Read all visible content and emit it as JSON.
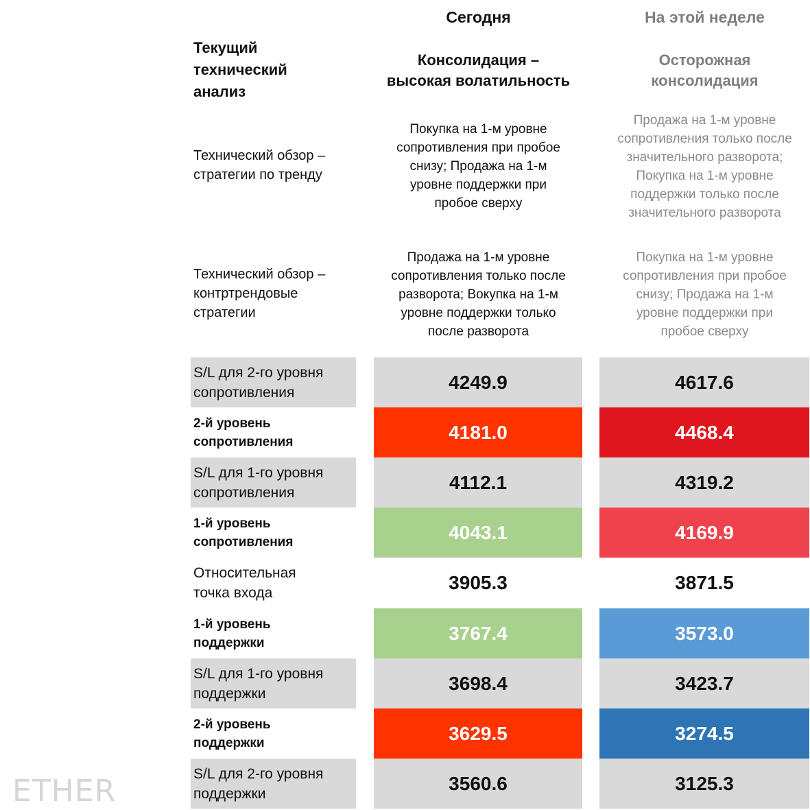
{
  "header": {
    "today": "Сегодня",
    "this_week": "На этой неделе",
    "left_title": "Текущий\nтехнический\nанализ",
    "today_outlook": "Консолидация –\nвысокая волатильность",
    "week_outlook": "Осторожная\nконсолидация"
  },
  "trend": {
    "label": "Технический обзор –\nстратегии по тренду",
    "today": "Покупка на 1-м уровне\nсопротивления при пробое\nснизу; Продажа на 1-м\nуровне поддержки при\nпробое сверху",
    "week": "Продажа на 1-м уровне\nсопротивления только после\nзначительного разворота;\nПокупка на 1-м уровне\nподдержки только после\nзначительного разворота"
  },
  "counter": {
    "label": "Технический обзор –\nконтртрендовые\nстратегии",
    "today": "Продажа на 1-м уровне\nсопротивления только после\nразворота; Вокупка на 1-м\nуровне поддержки только\nпосле разворота",
    "week": "Покупка на 1-м уровне\nсопротивления при пробое\nснизу; Продажа на 1-м\nуровне поддержки при\nпробое сверху"
  },
  "levels": [
    {
      "label": "S/L для 2-го уровня\nсопротивления",
      "today": "4249.9",
      "week": "4617.6",
      "today_bg": "#d9d9d9",
      "today_fg": "#111111",
      "week_bg": "#d9d9d9",
      "week_fg": "#111111"
    },
    {
      "label": "2-й уровень\nсопротивления",
      "today": "4181.0",
      "week": "4468.4",
      "today_bg": "#ff3300",
      "today_fg": "#ffffff",
      "week_bg": "#e0161e",
      "week_fg": "#ffffff"
    },
    {
      "label": "S/L для 1-го уровня\nсопротивления",
      "today": "4112.1",
      "week": "4319.2",
      "today_bg": "#d9d9d9",
      "today_fg": "#111111",
      "week_bg": "#d9d9d9",
      "week_fg": "#111111"
    },
    {
      "label": "1-й уровень\nсопротивления",
      "today": "4043.1",
      "week": "4169.9",
      "today_bg": "#a9d18e",
      "today_fg": "#ffffff",
      "week_bg": "#ee434c",
      "week_fg": "#ffffff"
    },
    {
      "label": "Относительная\nточка входа",
      "today": "3905.3",
      "week": "3871.5",
      "today_bg": "#ffffff",
      "today_fg": "#111111",
      "week_bg": "#ffffff",
      "week_fg": "#111111"
    },
    {
      "label": "1-й уровень\nподдержки",
      "today": "3767.4",
      "week": "3573.0",
      "today_bg": "#a9d18e",
      "today_fg": "#ffffff",
      "week_bg": "#5b9bd5",
      "week_fg": "#ffffff"
    },
    {
      "label": "S/L для 1-го уровня\nподдержки",
      "today": "3698.4",
      "week": "3423.7",
      "today_bg": "#d9d9d9",
      "today_fg": "#111111",
      "week_bg": "#d9d9d9",
      "week_fg": "#111111"
    },
    {
      "label": "2-й уровень\nподдержки",
      "today": "3629.5",
      "week": "3274.5",
      "today_bg": "#ff3300",
      "today_fg": "#ffffff",
      "week_bg": "#2e75b6",
      "week_fg": "#ffffff"
    },
    {
      "label": "S/L для 2-го уровня\nподдержки",
      "today": "3560.6",
      "week": "3125.3",
      "today_bg": "#d9d9d9",
      "today_fg": "#111111",
      "week_bg": "#d9d9d9",
      "week_fg": "#111111"
    }
  ],
  "watermark": "ETHER"
}
